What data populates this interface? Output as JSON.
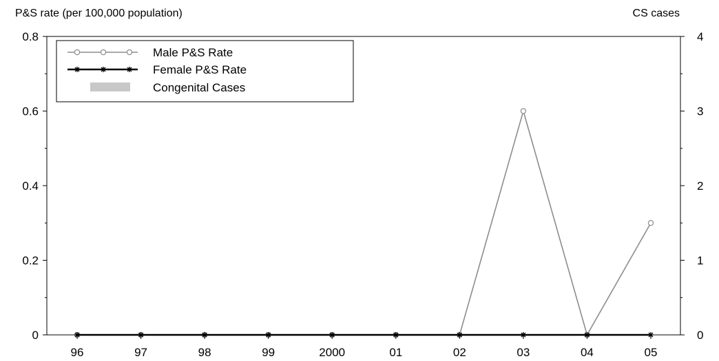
{
  "chart_data": {
    "type": "line",
    "left_axis_title": "P&S rate (per 100,000 population)",
    "right_axis_title": "CS cases",
    "categories": [
      "96",
      "97",
      "98",
      "99",
      "2000",
      "01",
      "02",
      "03",
      "04",
      "05"
    ],
    "ylim": [
      0,
      0.8
    ],
    "y_ticks": [
      "0",
      "0.2",
      "0.4",
      "0.6",
      "0.8"
    ],
    "y2lim": [
      0,
      4
    ],
    "y2_ticks": [
      "0",
      "1",
      "2",
      "3",
      "4"
    ],
    "grid": false,
    "legend_position": "top-left",
    "series": [
      {
        "name": "Male P&S Rate",
        "axis": "left",
        "marker": "circle",
        "color": "#8c8c8c",
        "values": [
          0,
          0,
          0,
          0,
          0,
          0,
          0,
          0.6,
          0,
          0.3
        ]
      },
      {
        "name": "Female P&S Rate",
        "axis": "left",
        "marker": "star",
        "color": "#000000",
        "values": [
          0,
          0,
          0,
          0,
          0,
          0,
          0,
          0,
          0,
          0
        ]
      },
      {
        "name": "Congenital Cases",
        "axis": "right",
        "type": "bar",
        "color": "#c8c8c8",
        "values": [
          0,
          0,
          0,
          0,
          0,
          0,
          0,
          0,
          0,
          0
        ]
      }
    ]
  }
}
